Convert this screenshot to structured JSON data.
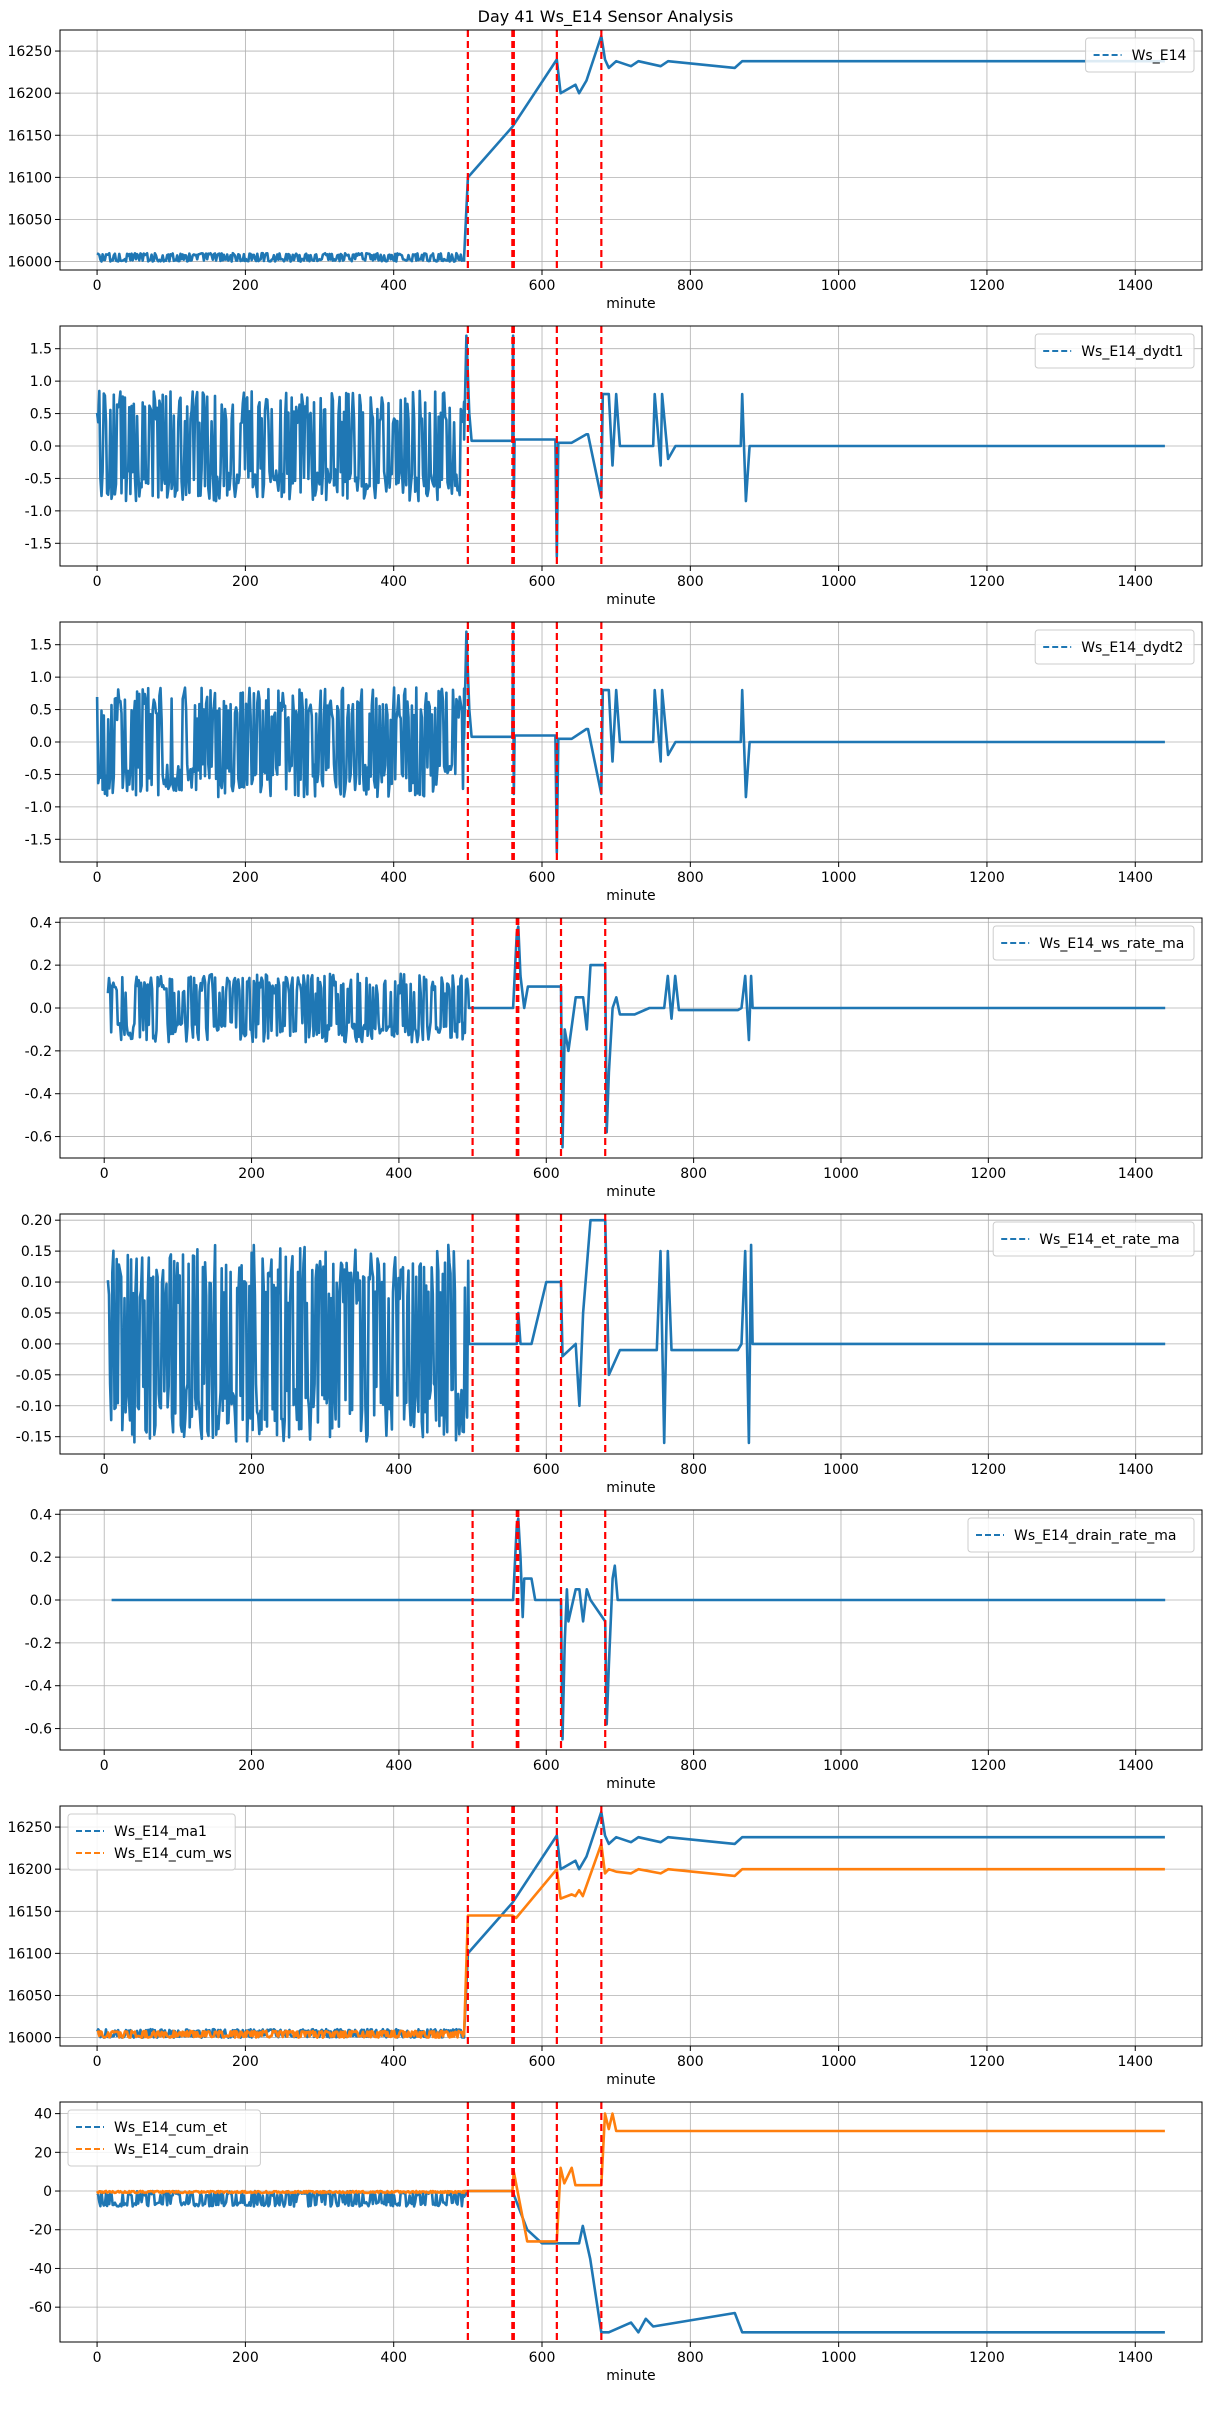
{
  "figure": {
    "title": "Day 41 Ws_E14 Sensor Analysis"
  },
  "colors": {
    "series_blue": "#1f77b4",
    "series_orange": "#ff7f0e",
    "event_line": "#ff0000",
    "grid": "#b0b0b0",
    "axis": "#000000"
  },
  "chart_data": [
    {
      "type": "line",
      "xlabel": "minute",
      "ylabel": "",
      "xlim": [
        -50,
        1490
      ],
      "ylim": [
        15990,
        16275
      ],
      "xticks": [
        0,
        200,
        400,
        600,
        800,
        1000,
        1200,
        1400
      ],
      "yticks": [
        16000,
        16050,
        16100,
        16150,
        16200,
        16250
      ],
      "ytick_labels": [
        "16000",
        "16050",
        "16100",
        "16150",
        "16200",
        "16250"
      ],
      "grid": true,
      "legend": "upper right",
      "event_lines": [
        500,
        560,
        562,
        620,
        680
      ],
      "series": [
        {
          "name": "Ws_E14",
          "color": "#1f77b4",
          "noise": {
            "x_from": 0,
            "x_to": 495,
            "low": 16000,
            "high": 16010
          },
          "x": [
            0,
            495,
            500,
            560,
            620,
            625,
            645,
            650,
            660,
            680,
            685,
            690,
            700,
            720,
            730,
            760,
            770,
            860,
            870,
            1440
          ],
          "y": [
            16005,
            16005,
            16100,
            16160,
            16240,
            16200,
            16210,
            16200,
            16215,
            16268,
            16240,
            16230,
            16238,
            16232,
            16238,
            16232,
            16238,
            16230,
            16238,
            16238
          ]
        }
      ]
    },
    {
      "type": "line",
      "xlabel": "minute",
      "ylabel": "",
      "xlim": [
        -50,
        1490
      ],
      "ylim": [
        -1.85,
        1.85
      ],
      "xticks": [
        0,
        200,
        400,
        600,
        800,
        1000,
        1200,
        1400
      ],
      "yticks": [
        -1.5,
        -1.0,
        -0.5,
        0.0,
        0.5,
        1.0,
        1.5
      ],
      "ytick_labels": [
        "-1.5",
        "-1.0",
        "-0.5",
        "0.0",
        "0.5",
        "1.0",
        "1.5"
      ],
      "grid": true,
      "legend": "upper right",
      "event_lines": [
        500,
        560,
        562,
        620,
        680
      ],
      "series": [
        {
          "name": "Ws_E14_dydt1",
          "color": "#1f77b4",
          "noise": {
            "x_from": 0,
            "x_to": 495,
            "low": -0.85,
            "high": 0.85
          },
          "x": [
            0,
            495,
            498,
            502,
            505,
            560,
            561,
            562,
            563,
            600,
            618,
            620,
            622,
            640,
            660,
            662,
            680,
            682,
            690,
            695,
            700,
            705,
            720,
            750,
            752,
            760,
            762,
            770,
            780,
            868,
            870,
            875,
            880,
            1440
          ],
          "y": [
            0.1,
            0.1,
            1.7,
            0.5,
            0.08,
            0.08,
            1.7,
            -0.8,
            0.1,
            0.1,
            0.1,
            -1.7,
            0.05,
            0.05,
            0.18,
            0.18,
            -0.8,
            0.8,
            0.8,
            -0.3,
            0.8,
            0.0,
            0.0,
            0.0,
            0.8,
            -0.3,
            0.8,
            -0.2,
            0.0,
            0.0,
            0.8,
            -0.85,
            0.0,
            0.0
          ]
        }
      ]
    },
    {
      "type": "line",
      "xlabel": "minute",
      "ylabel": "",
      "xlim": [
        -50,
        1490
      ],
      "ylim": [
        -1.85,
        1.85
      ],
      "xticks": [
        0,
        200,
        400,
        600,
        800,
        1000,
        1200,
        1400
      ],
      "yticks": [
        -1.5,
        -1.0,
        -0.5,
        0.0,
        0.5,
        1.0,
        1.5
      ],
      "ytick_labels": [
        "-1.5",
        "-1.0",
        "-0.5",
        "0.0",
        "0.5",
        "1.0",
        "1.5"
      ],
      "grid": true,
      "legend": "upper right",
      "event_lines": [
        500,
        560,
        562,
        620,
        680
      ],
      "series": [
        {
          "name": "Ws_E14_dydt2",
          "color": "#1f77b4",
          "noise": {
            "x_from": 0,
            "x_to": 495,
            "low": -0.85,
            "high": 0.85
          },
          "x": [
            0,
            495,
            498,
            502,
            505,
            560,
            561,
            562,
            563,
            600,
            618,
            620,
            622,
            640,
            660,
            662,
            680,
            682,
            690,
            695,
            700,
            705,
            720,
            750,
            752,
            760,
            762,
            770,
            780,
            868,
            870,
            875,
            880,
            1440
          ],
          "y": [
            0.05,
            0.05,
            1.7,
            0.5,
            0.08,
            0.08,
            1.7,
            -0.8,
            0.1,
            0.1,
            0.1,
            -1.7,
            0.05,
            0.05,
            0.2,
            0.2,
            -0.8,
            0.8,
            0.8,
            -0.3,
            0.8,
            0.0,
            0.0,
            0.0,
            0.8,
            -0.3,
            0.8,
            -0.2,
            0.0,
            0.0,
            0.8,
            -0.85,
            0.0,
            0.0
          ]
        }
      ]
    },
    {
      "type": "line",
      "xlabel": "minute",
      "ylabel": "",
      "xlim": [
        -60,
        1490
      ],
      "ylim": [
        -0.7,
        0.42
      ],
      "xticks": [
        0,
        200,
        400,
        600,
        800,
        1000,
        1200,
        1400
      ],
      "yticks": [
        -0.6,
        -0.4,
        -0.2,
        0.0,
        0.2,
        0.4
      ],
      "ytick_labels": [
        "-0.6",
        "-0.4",
        "-0.2",
        "0.0",
        "0.2",
        "0.4"
      ],
      "grid": true,
      "legend": "upper right",
      "event_lines": [
        500,
        560,
        562,
        620,
        680
      ],
      "series": [
        {
          "name": "Ws_E14_ws_rate_ma",
          "color": "#1f77b4",
          "noise": {
            "x_from": 5,
            "x_to": 495,
            "low": -0.16,
            "high": 0.16
          },
          "x": [
            5,
            495,
            500,
            555,
            560,
            562,
            565,
            570,
            575,
            580,
            620,
            622,
            625,
            630,
            640,
            650,
            655,
            660,
            680,
            682,
            685,
            690,
            695,
            700,
            720,
            740,
            760,
            765,
            770,
            775,
            780,
            860,
            865,
            870,
            875,
            878,
            880,
            1440
          ],
          "y": [
            0.0,
            0.0,
            0.0,
            0.0,
            0.35,
            0.38,
            0.15,
            0.0,
            0.1,
            0.1,
            0.1,
            -0.65,
            -0.1,
            -0.2,
            0.05,
            0.05,
            -0.1,
            0.2,
            0.2,
            -0.58,
            -0.3,
            0.0,
            0.05,
            -0.03,
            -0.03,
            0.0,
            0.0,
            0.15,
            -0.05,
            0.15,
            -0.01,
            -0.01,
            0.0,
            0.15,
            -0.15,
            0.15,
            0.0,
            0.0
          ]
        }
      ]
    },
    {
      "type": "line",
      "xlabel": "minute",
      "ylabel": "",
      "xlim": [
        -60,
        1490
      ],
      "ylim": [
        -0.178,
        0.21
      ],
      "xticks": [
        0,
        200,
        400,
        600,
        800,
        1000,
        1200,
        1400
      ],
      "yticks": [
        -0.15,
        -0.1,
        -0.05,
        0.0,
        0.05,
        0.1,
        0.15,
        0.2
      ],
      "ytick_labels": [
        "-0.15",
        "-0.10",
        "-0.05",
        "0.00",
        "0.05",
        "0.10",
        "0.15",
        "0.20"
      ],
      "grid": true,
      "legend": "upper right",
      "event_lines": [
        500,
        560,
        562,
        620,
        680
      ],
      "series": [
        {
          "name": "Ws_E14_et_rate_ma",
          "color": "#1f77b4",
          "noise": {
            "x_from": 5,
            "x_to": 495,
            "low": -0.16,
            "high": 0.16
          },
          "x": [
            5,
            495,
            500,
            560,
            562,
            565,
            580,
            600,
            620,
            622,
            640,
            645,
            650,
            660,
            680,
            685,
            700,
            720,
            750,
            755,
            760,
            765,
            770,
            780,
            860,
            865,
            870,
            875,
            878,
            880,
            1440
          ],
          "y": [
            0.0,
            0.0,
            0.0,
            0.0,
            0.05,
            0.0,
            0.0,
            0.1,
            0.1,
            -0.02,
            0.0,
            -0.1,
            0.05,
            0.2,
            0.2,
            -0.05,
            -0.01,
            -0.01,
            -0.01,
            0.15,
            -0.16,
            0.15,
            -0.01,
            -0.01,
            -0.01,
            0.0,
            0.15,
            -0.16,
            0.16,
            0.0,
            0.0
          ]
        }
      ]
    },
    {
      "type": "line",
      "xlabel": "minute",
      "ylabel": "",
      "xlim": [
        -60,
        1490
      ],
      "ylim": [
        -0.7,
        0.42
      ],
      "xticks": [
        0,
        200,
        400,
        600,
        800,
        1000,
        1200,
        1400
      ],
      "yticks": [
        -0.6,
        -0.4,
        -0.2,
        0.0,
        0.2,
        0.4
      ],
      "ytick_labels": [
        "-0.6",
        "-0.4",
        "-0.2",
        "0.0",
        "0.2",
        "0.4"
      ],
      "grid": true,
      "legend": "upper right",
      "event_lines": [
        500,
        560,
        562,
        620,
        680
      ],
      "series": [
        {
          "name": "Ws_E14_drain_rate_ma",
          "color": "#1f77b4",
          "x": [
            10,
            555,
            560,
            562,
            565,
            568,
            570,
            575,
            580,
            585,
            620,
            622,
            625,
            628,
            630,
            640,
            645,
            650,
            655,
            660,
            680,
            682,
            685,
            690,
            693,
            697,
            700,
            1440
          ],
          "y": [
            0.0,
            0.0,
            0.35,
            0.38,
            0.2,
            -0.08,
            0.1,
            0.1,
            0.1,
            0.0,
            0.0,
            -0.65,
            -0.2,
            0.05,
            -0.1,
            0.05,
            0.05,
            -0.1,
            0.05,
            0.0,
            -0.1,
            -0.58,
            -0.3,
            0.1,
            0.16,
            0.0,
            0.0,
            0.0
          ]
        }
      ]
    },
    {
      "type": "line",
      "xlabel": "minute",
      "ylabel": "",
      "xlim": [
        -50,
        1490
      ],
      "ylim": [
        15990,
        16275
      ],
      "xticks": [
        0,
        200,
        400,
        600,
        800,
        1000,
        1200,
        1400
      ],
      "yticks": [
        16000,
        16050,
        16100,
        16150,
        16200,
        16250
      ],
      "ytick_labels": [
        "16000",
        "16050",
        "16100",
        "16150",
        "16200",
        "16250"
      ],
      "grid": true,
      "legend": "upper left",
      "event_lines": [
        500,
        560,
        562,
        620,
        680
      ],
      "series": [
        {
          "name": "Ws_E14_ma1",
          "color": "#1f77b4",
          "noise": {
            "x_from": 0,
            "x_to": 495,
            "low": 16000,
            "high": 16010
          },
          "x": [
            0,
            495,
            500,
            560,
            620,
            625,
            645,
            650,
            660,
            680,
            685,
            690,
            700,
            720,
            730,
            760,
            770,
            860,
            870,
            1440
          ],
          "y": [
            16005,
            16005,
            16100,
            16160,
            16240,
            16200,
            16210,
            16200,
            16215,
            16268,
            16240,
            16230,
            16238,
            16232,
            16238,
            16232,
            16238,
            16230,
            16238,
            16238
          ]
        },
        {
          "name": "Ws_E14_cum_ws",
          "color": "#ff7f0e",
          "noise": {
            "x_from": 0,
            "x_to": 495,
            "low": 16000,
            "high": 16008
          },
          "x": [
            0,
            495,
            500,
            560,
            565,
            620,
            625,
            640,
            645,
            650,
            655,
            680,
            685,
            690,
            700,
            720,
            730,
            760,
            770,
            860,
            870,
            1440
          ],
          "y": [
            16004,
            16004,
            16145,
            16145,
            16142,
            16200,
            16165,
            16170,
            16168,
            16175,
            16168,
            16230,
            16195,
            16200,
            16197,
            16195,
            16200,
            16195,
            16200,
            16192,
            16200,
            16200
          ]
        }
      ]
    },
    {
      "type": "line",
      "xlabel": "minute",
      "ylabel": "",
      "xlim": [
        -50,
        1490
      ],
      "ylim": [
        -78,
        46
      ],
      "xticks": [
        0,
        200,
        400,
        600,
        800,
        1000,
        1200,
        1400
      ],
      "yticks": [
        -60,
        -40,
        -20,
        0,
        20,
        40
      ],
      "ytick_labels": [
        "-60",
        "-40",
        "-20",
        "0",
        "20",
        "40"
      ],
      "grid": true,
      "legend": "upper left",
      "event_lines": [
        500,
        560,
        562,
        620,
        680
      ],
      "series": [
        {
          "name": "Ws_E14_cum_et",
          "color": "#1f77b4",
          "noise": {
            "x_from": 0,
            "x_to": 495,
            "low": -8,
            "high": 0
          },
          "x": [
            0,
            495,
            500,
            560,
            580,
            600,
            620,
            650,
            655,
            665,
            680,
            690,
            720,
            730,
            740,
            750,
            860,
            870,
            880,
            1440
          ],
          "y": [
            -3,
            -3,
            0,
            0,
            -20,
            -27,
            -27,
            -27,
            -18,
            -35,
            -73,
            -73,
            -68,
            -73,
            -66,
            -70,
            -63,
            -73,
            -73,
            -73
          ]
        },
        {
          "name": "Ws_E14_cum_drain",
          "color": "#ff7f0e",
          "noise": {
            "x_from": 0,
            "x_to": 495,
            "low": -1,
            "high": 0
          },
          "x": [
            0,
            495,
            500,
            560,
            562,
            580,
            600,
            620,
            625,
            630,
            640,
            645,
            650,
            680,
            685,
            690,
            695,
            700,
            1440
          ],
          "y": [
            0,
            0,
            0,
            0,
            10,
            -26,
            -26,
            -26,
            12,
            4,
            12,
            3,
            3,
            3,
            40,
            32,
            40,
            31,
            31
          ]
        }
      ]
    }
  ]
}
